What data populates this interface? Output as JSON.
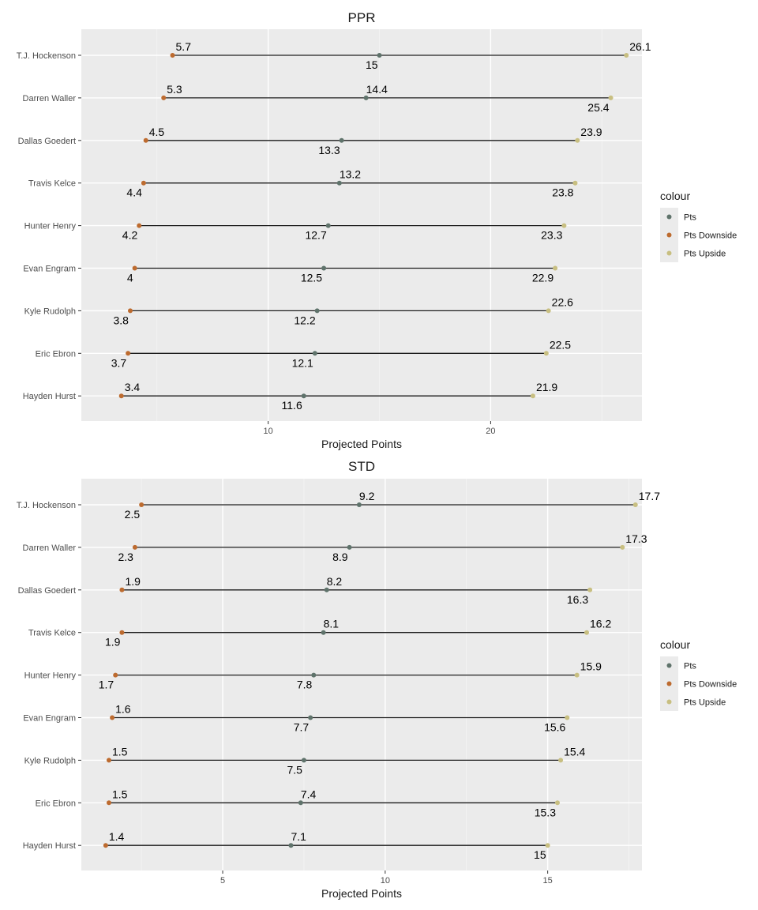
{
  "chart_data": [
    {
      "type": "dumbbell",
      "title": "PPR",
      "xlabel": "Projected Points",
      "ylabel": "",
      "xlim": [
        1.6,
        26.8
      ],
      "xticks": [
        10,
        20
      ],
      "categories": [
        "T.J. Hockenson",
        "Darren Waller",
        "Dallas Goedert",
        "Travis Kelce",
        "Hunter Henry",
        "Evan Engram",
        "Kyle Rudolph",
        "Eric Ebron",
        "Hayden Hurst"
      ],
      "series": [
        {
          "name": "Pts",
          "color": "#5f736b",
          "values": [
            15,
            14.4,
            13.3,
            13.2,
            12.7,
            12.5,
            12.2,
            12.1,
            11.6
          ]
        },
        {
          "name": "Pts Downside",
          "color": "#bd6b2f",
          "values": [
            5.7,
            5.3,
            4.5,
            4.4,
            4.2,
            4,
            3.8,
            3.7,
            3.4
          ]
        },
        {
          "name": "Pts Upside",
          "color": "#c8bf81",
          "values": [
            26.1,
            25.4,
            23.9,
            23.8,
            23.3,
            22.9,
            22.6,
            22.5,
            21.9
          ]
        }
      ],
      "labels": {
        "Pts": [
          "15",
          "14.4",
          "13.3",
          "13.2",
          "12.7",
          "12.5",
          "12.2",
          "12.1",
          "11.6"
        ],
        "Pts Downside": [
          "5.7",
          "5.3",
          "4.5",
          "4.4",
          "4.2",
          "4",
          "3.8",
          "3.7",
          "3.4"
        ],
        "Pts Upside": [
          "26.1",
          "25.4",
          "23.9",
          "23.8",
          "23.3",
          "22.9",
          "22.6",
          "22.5",
          "21.9"
        ]
      },
      "label_positions": {
        "Pts": [
          "below",
          "above",
          "below",
          "above",
          "below",
          "below",
          "below",
          "below",
          "below"
        ],
        "Pts Downside": [
          "above",
          "above",
          "above",
          "below",
          "below",
          "below",
          "below",
          "below",
          "above"
        ],
        "Pts Upside": [
          "above",
          "below",
          "above",
          "below",
          "below",
          "below",
          "above",
          "above",
          "above"
        ]
      },
      "legend": {
        "title": "colour",
        "position": "right",
        "items": [
          "Pts",
          "Pts Downside",
          "Pts Upside"
        ]
      },
      "grid": true
    },
    {
      "type": "dumbbell",
      "title": "STD",
      "xlabel": "Projected Points",
      "ylabel": "",
      "xlim": [
        0.65,
        17.9
      ],
      "xticks": [
        5,
        10,
        15
      ],
      "categories": [
        "T.J. Hockenson",
        "Darren Waller",
        "Dallas Goedert",
        "Travis Kelce",
        "Hunter Henry",
        "Evan Engram",
        "Kyle Rudolph",
        "Eric Ebron",
        "Hayden Hurst"
      ],
      "series": [
        {
          "name": "Pts",
          "color": "#5f736b",
          "values": [
            9.2,
            8.9,
            8.2,
            8.1,
            7.8,
            7.7,
            7.5,
            7.4,
            7.1
          ]
        },
        {
          "name": "Pts Downside",
          "color": "#bd6b2f",
          "values": [
            2.5,
            2.3,
            1.9,
            1.9,
            1.7,
            1.6,
            1.5,
            1.5,
            1.4
          ]
        },
        {
          "name": "Pts Upside",
          "color": "#c8bf81",
          "values": [
            17.7,
            17.3,
            16.3,
            16.2,
            15.9,
            15.6,
            15.4,
            15.3,
            15
          ]
        }
      ],
      "labels": {
        "Pts": [
          "9.2",
          "8.9",
          "8.2",
          "8.1",
          "7.8",
          "7.7",
          "7.5",
          "7.4",
          "7.1"
        ],
        "Pts Downside": [
          "2.5",
          "2.3",
          "1.9",
          "1.9",
          "1.7",
          "1.6",
          "1.5",
          "1.5",
          "1.4"
        ],
        "Pts Upside": [
          "17.7",
          "17.3",
          "16.3",
          "16.2",
          "15.9",
          "15.6",
          "15.4",
          "15.3",
          "15"
        ]
      },
      "label_positions": {
        "Pts": [
          "above",
          "below",
          "above",
          "above",
          "below",
          "below",
          "below",
          "above",
          "above"
        ],
        "Pts Downside": [
          "below",
          "below",
          "above",
          "below",
          "below",
          "above",
          "above",
          "above",
          "above"
        ],
        "Pts Upside": [
          "above",
          "above",
          "below",
          "above",
          "above",
          "below",
          "above",
          "below",
          "below"
        ]
      },
      "legend": {
        "title": "colour",
        "position": "right",
        "items": [
          "Pts",
          "Pts Downside",
          "Pts Upside"
        ]
      },
      "grid": true
    }
  ]
}
